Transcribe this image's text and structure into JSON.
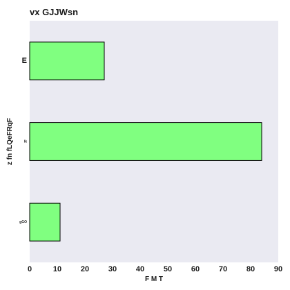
{
  "chart_data": {
    "type": "bar",
    "orientation": "horizontal",
    "title": "vx GJJWsn",
    "xlabel": "F M T",
    "ylabel": "z  fn fLQeFRqF",
    "categories": [
      "E",
      "lk",
      "gGO"
    ],
    "values": [
      27,
      84,
      11
    ],
    "xlim": [
      0,
      90
    ],
    "xticks": [
      "0",
      "10",
      "20",
      "30",
      "40",
      "50",
      "60",
      "70",
      "80",
      "90"
    ],
    "grid": false,
    "background_color": "#eaeaf2",
    "bar_color": "#80ff80",
    "bar_edge_color": "#000000"
  }
}
